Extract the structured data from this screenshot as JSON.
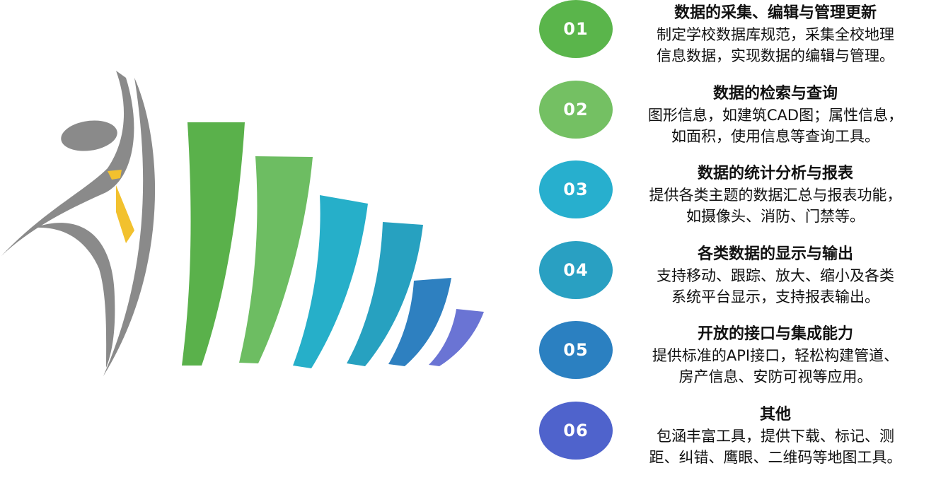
{
  "colors": {
    "figure_gray": "#8a8a8a",
    "tie": "#f2c12e",
    "bars": [
      "#5ab14b",
      "#6dbd62",
      "#26afc9",
      "#27a1c0",
      "#2e80c0",
      "#6a74d4"
    ]
  },
  "items": [
    {
      "number": "01",
      "color": "#5ab54b",
      "title": "数据的采集、编辑与管理更新",
      "desc": [
        "制定学校数据库规范，采集全校地理",
        "信息数据，实现数据的编辑与管理。"
      ]
    },
    {
      "number": "02",
      "color": "#74c063",
      "title": "数据的检索与查询",
      "desc": [
        "图形信息，如建筑CAD图；属性信息，",
        "如面积，使用信息等查询工具。"
      ]
    },
    {
      "number": "03",
      "color": "#27afce",
      "title": "数据的统计分析与报表",
      "desc": [
        "提供各类主题的数据汇总与报表功能，",
        "如摄像头、消防、门禁等。"
      ]
    },
    {
      "number": "04",
      "color": "#29a0c2",
      "title": "各类数据的显示与输出",
      "desc": [
        "支持移动、跟踪、放大、缩小及各类",
        "系统平台显示，支持报表输出。"
      ]
    },
    {
      "number": "05",
      "color": "#2b80c1",
      "title": "开放的接口与集成能力",
      "desc": [
        "提供标准的API接口，轻松构建管道、",
        "房产信息、安防可视等应用。"
      ]
    },
    {
      "number": "06",
      "color": "#4f63cc",
      "title": "其他",
      "desc": [
        "包涵丰富工具，提供下载、标记、测",
        "距、纠错、鹰眼、二维码等地图工具。"
      ]
    }
  ]
}
